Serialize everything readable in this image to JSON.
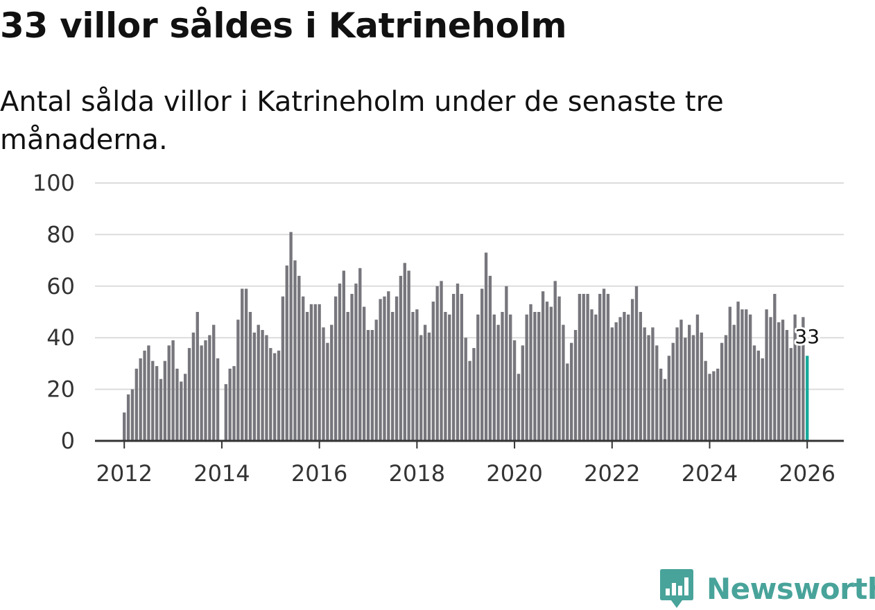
{
  "header": {
    "title": "33 villor såldes i Katrineholm",
    "subtitle": "Antal sålda villor i Katrineholm under de senaste tre månaderna."
  },
  "branding": {
    "name": "Newsworthy",
    "icon": "newsworthy-logo-icon"
  },
  "colors": {
    "bars": "#76767c",
    "highlight": "#16a99a",
    "grid": "#dcdcdc",
    "axis": "#333333",
    "brand": "#48a39a"
  },
  "chart_data": {
    "type": "bar",
    "title": "33 villor såldes i Katrineholm",
    "subtitle": "Antal sålda villor i Katrineholm under de senaste tre månaderna.",
    "xlabel": "",
    "ylabel": "",
    "ylim": [
      0,
      100
    ],
    "yticks": [
      0,
      20,
      40,
      60,
      80,
      100
    ],
    "xlim": [
      2011.4,
      2026.75
    ],
    "xticks": [
      "2012",
      "2014",
      "2016",
      "2018",
      "2020",
      "2022",
      "2024",
      "2026"
    ],
    "grid": true,
    "highlight_label": "33",
    "start": {
      "year": 2012,
      "month": 1
    },
    "series": [
      {
        "name": "Antal sålda villor",
        "values": [
          11,
          18,
          20,
          28,
          32,
          35,
          37,
          31,
          29,
          24,
          31,
          37,
          39,
          28,
          23,
          26,
          36,
          42,
          50,
          37,
          39,
          41,
          45,
          32,
          null,
          22,
          28,
          29,
          47,
          59,
          59,
          50,
          42,
          45,
          43,
          41,
          36,
          34,
          35,
          56,
          68,
          81,
          70,
          64,
          56,
          50,
          53,
          53,
          53,
          44,
          38,
          45,
          56,
          61,
          66,
          50,
          57,
          61,
          67,
          52,
          43,
          43,
          47,
          55,
          56,
          58,
          50,
          56,
          64,
          69,
          66,
          50,
          51,
          41,
          45,
          42,
          54,
          60,
          62,
          50,
          49,
          57,
          61,
          57,
          40,
          31,
          36,
          49,
          59,
          73,
          64,
          49,
          45,
          50,
          60,
          49,
          39,
          26,
          37,
          49,
          53,
          50,
          50,
          58,
          54,
          52,
          62,
          56,
          45,
          30,
          38,
          43,
          57,
          57,
          57,
          51,
          49,
          57,
          59,
          57,
          44,
          46,
          48,
          50,
          49,
          55,
          60,
          50,
          44,
          41,
          44,
          37,
          28,
          24,
          33,
          38,
          44,
          47,
          40,
          45,
          41,
          49,
          42,
          31,
          26,
          27,
          28,
          38,
          41,
          52,
          45,
          54,
          51,
          51,
          49,
          37,
          35,
          32,
          51,
          48,
          57,
          46,
          47,
          43,
          36,
          49,
          38,
          48,
          33
        ]
      }
    ]
  }
}
